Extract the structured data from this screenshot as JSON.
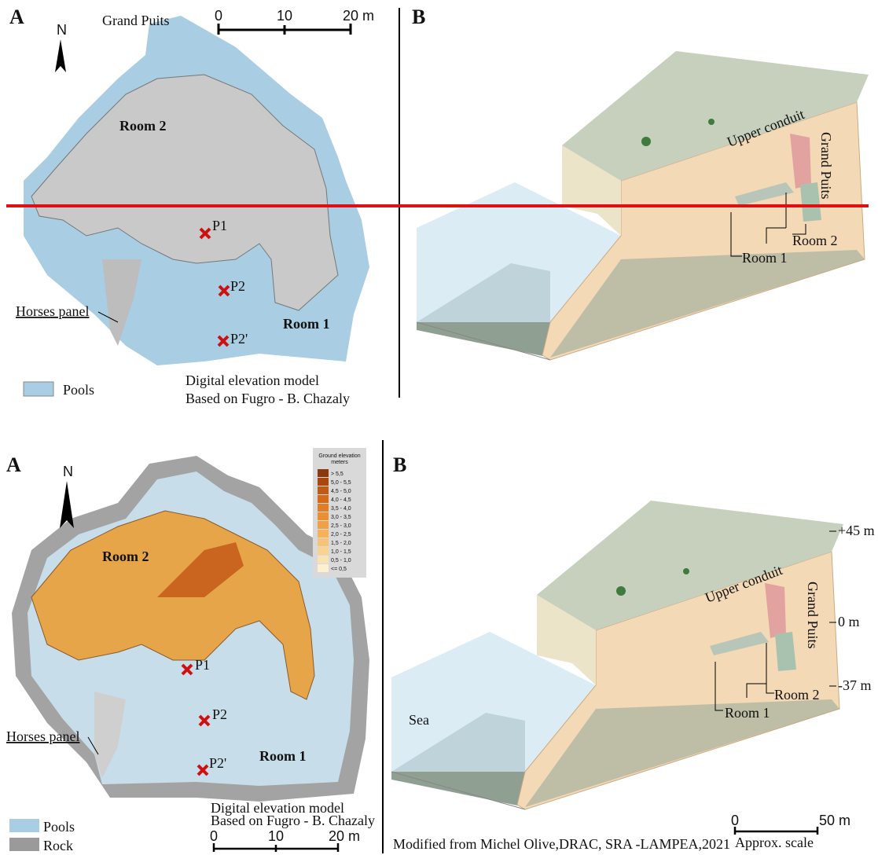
{
  "top": {
    "map": {
      "panel": "A",
      "entrance": "Grand Puits",
      "scale": [
        "0",
        "10",
        "20 m"
      ],
      "north": "N",
      "room_2": "Room 2",
      "points": [
        "P1",
        "P2",
        "P2'"
      ],
      "horses": "Horses panel",
      "room_1": "Room 1",
      "legend": [
        "Pools"
      ],
      "source": [
        "Digital elevation model",
        "Based on Fugro - B. Chazaly"
      ]
    },
    "block": {
      "panel": "B",
      "conduit": "Upper conduit",
      "entrance": "Grand Puits",
      "room_2": "Room 2",
      "room_1": "Room 1"
    }
  },
  "bottom": {
    "map": {
      "panel": "A",
      "north": "N",
      "elevation_legend": {
        "title": [
          "Ground elevation",
          "meters"
        ],
        "entries": [
          {
            "label": "> 5,5",
            "color": "#8b3a0f"
          },
          {
            "label": "5,0 - 5,5",
            "color": "#a6480f"
          },
          {
            "label": "4,5 - 5,0",
            "color": "#c05a14"
          },
          {
            "label": "4,0 - 4,5",
            "color": "#d46b1c"
          },
          {
            "label": "3,5 - 4,0",
            "color": "#e07d25"
          },
          {
            "label": "3,0 - 3,5",
            "color": "#ea8f33"
          },
          {
            "label": "2,5 - 3,0",
            "color": "#f0a046"
          },
          {
            "label": "2,0 - 2,5",
            "color": "#f4b25d"
          },
          {
            "label": "1,5 - 2,0",
            "color": "#f7c378"
          },
          {
            "label": "1,0 - 1,5",
            "color": "#f9d394"
          },
          {
            "label": "0,5 - 1,0",
            "color": "#fbe2b2"
          },
          {
            "label": "<= 0,5",
            "color": "#fdf0d2"
          }
        ]
      },
      "room_2": "Room 2",
      "points": [
        "P1",
        "P2",
        "P2'"
      ],
      "horses": "Horses panel",
      "room_1": "Room 1",
      "legend": [
        "Pools",
        "Rock"
      ],
      "source": [
        "Digital elevation model",
        "Based on Fugro - B. Chazaly"
      ],
      "scale": [
        "0",
        "10",
        "20 m"
      ]
    },
    "block": {
      "panel": "B",
      "levels": [
        "+45 m",
        "0 m",
        "-37 m"
      ],
      "conduit": "Upper conduit",
      "entrance": "Grand Puits",
      "room_2": "Room 2",
      "room_1": "Room 1",
      "sea": "Sea",
      "scale": [
        "0",
        "50 m"
      ],
      "scale_note": "Approx. scale",
      "credit": "Modified from Michel Olive,DRAC, SRA -LAMPEA,2021"
    }
  }
}
